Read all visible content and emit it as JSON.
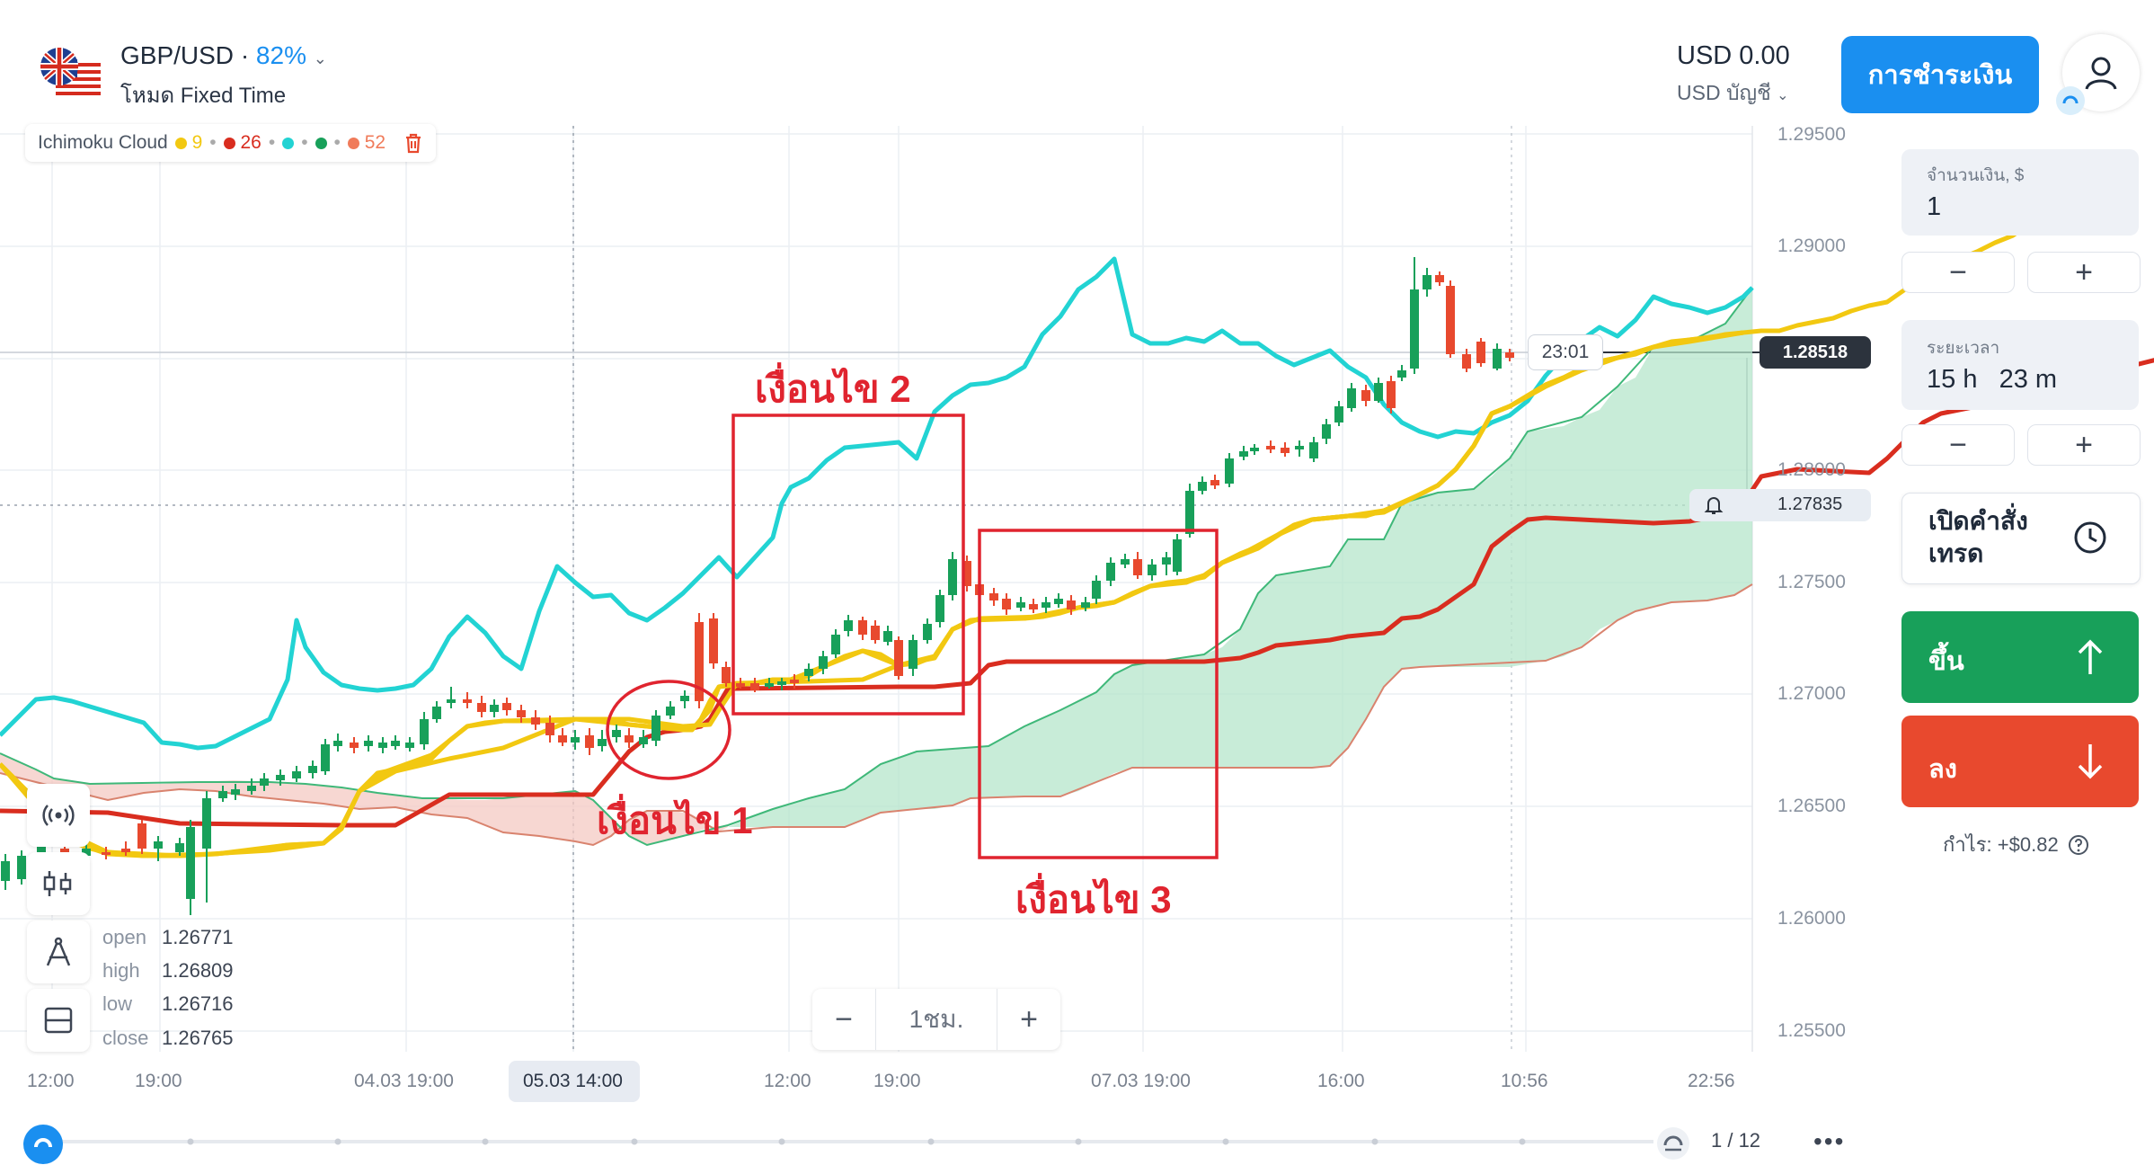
{
  "header": {
    "pair": "GBP/USD",
    "payout": "82%",
    "mode": "โหมด Fixed Time",
    "balance": "USD 0.00",
    "account": "USD บัญชี",
    "pay_button": "การชำระเงิน"
  },
  "indicator": {
    "name": "Ichimoku Cloud",
    "params": [
      "9",
      "26",
      "52"
    ],
    "colors": [
      "#f2c811",
      "#d92d1f",
      "#22d3d3",
      "#18a05a",
      "#f07b5a"
    ]
  },
  "panel": {
    "amount_label": "จำนวนเงิน, $",
    "amount_value": "1",
    "time_label": "ระยะเวลา",
    "time_value": "15 h   23 m",
    "minus": "−",
    "plus": "+",
    "pending_order": "เปิดคำสั่ง เทรด",
    "up": "ขึ้น",
    "down": "ลง",
    "profit": "กำไร: +$0.82"
  },
  "ohlc": {
    "open_label": "open",
    "open": "1.26771",
    "high_label": "high",
    "high": "1.26809",
    "low_label": "low",
    "low": "1.26716",
    "close_label": "close",
    "close": "1.26765"
  },
  "zoom": {
    "minus": "−",
    "label": "1ชม.",
    "plus": "+"
  },
  "time_ticks": [
    "12:00",
    "19:00",
    "04.03 19:00",
    "05.03 14:00",
    "12:00",
    "19:00",
    "07.03 19:00",
    "16:00",
    "10:56",
    "22:56"
  ],
  "price_ticks": [
    "1.29500",
    "1.29000",
    "1.28000",
    "1.27500",
    "1.27000",
    "1.26500",
    "1.26000",
    "1.25500"
  ],
  "current_price": "1.28518",
  "crosshair_price": "1.27835",
  "countdown": "23:01",
  "pagination": "1 / 12",
  "more": "•••",
  "annotations": [
    "เงื่อนไข 1",
    "เงื่อนไข 2",
    "เงื่อนไข 3"
  ],
  "colors": {
    "accent": "#1a8ff0",
    "up": "#18a05a",
    "down": "#e8492e",
    "tenkan": "#f2c811",
    "kijun": "#d92d1f",
    "chikou": "#22d3d3",
    "annotation": "#e0242f"
  }
}
